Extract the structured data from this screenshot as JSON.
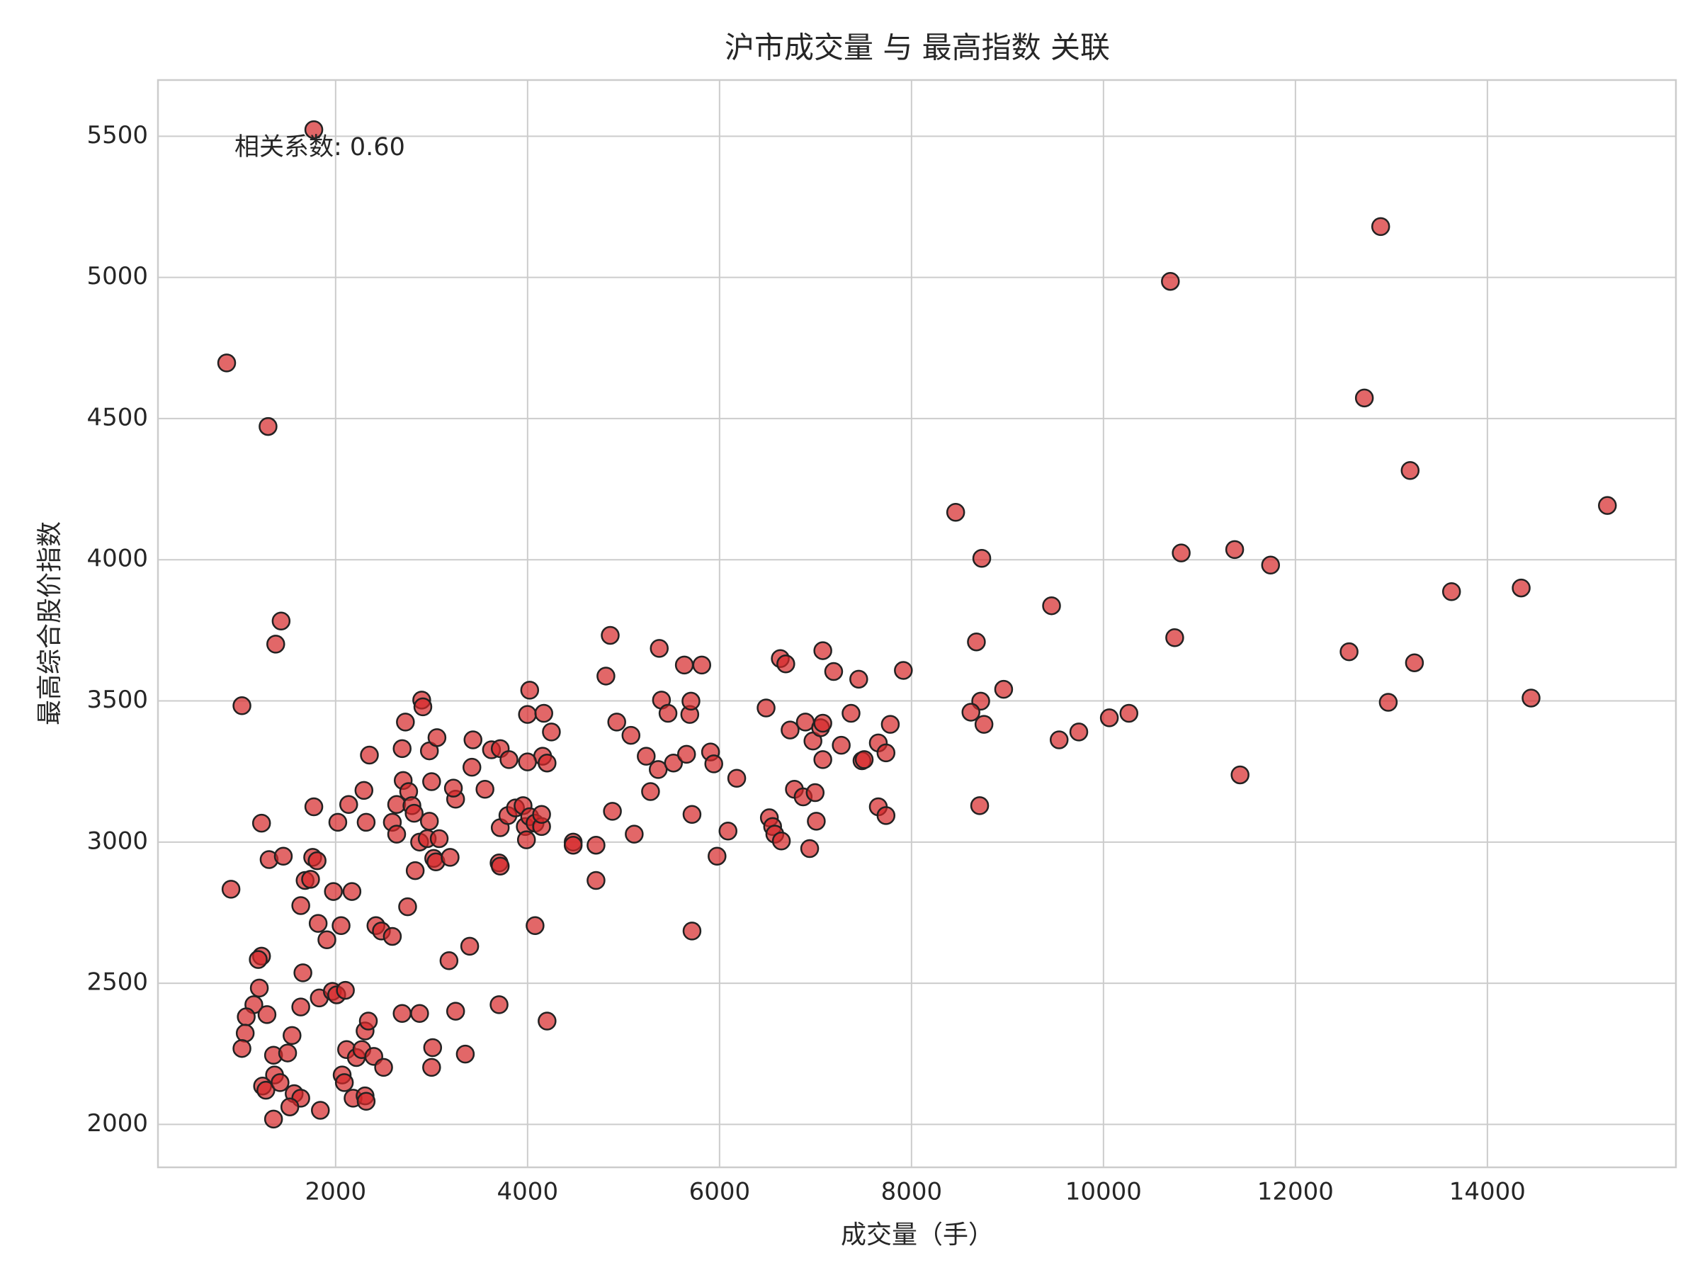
{
  "chart_data": {
    "type": "scatter",
    "title": "沪市成交量 与 最高指数 关联",
    "x_label": "成交量（手）",
    "y_label": "最高综合股价指数",
    "annotation": "相关系数: 0.60",
    "color": "#d62728",
    "grid": true,
    "xlim": [
      149,
      15964
    ],
    "ylim": [
      1848,
      5699
    ],
    "xticks": [
      2000,
      4000,
      6000,
      8000,
      10000,
      12000,
      14000
    ],
    "yticks": [
      2000,
      2500,
      3000,
      3500,
      4000,
      4500,
      5000,
      5500
    ],
    "x": [
      1773,
      865,
      1296,
      10697,
      12888,
      12718,
      13195,
      15250,
      8460,
      8732,
      10810,
      11367,
      11741,
      9459,
      14352,
      13626,
      10742,
      12559,
      13240,
      14455,
      12967,
      11423,
      8676,
      8721,
      8619,
      8755,
      8960,
      8710,
      7915,
      9538,
      9743,
      10061,
      10265,
      1432,
      1376,
      1024,
      910,
      1228,
      1307,
      1455,
      1773,
      1761,
      1807,
      1818,
      1682,
      1739,
      1637,
      1909,
      1977,
      2170,
      2057,
      1659,
      1228,
      1194,
      1205,
      1148,
      1069,
      1058,
      1024,
      1285,
      1637,
      1830,
      1966,
      2011,
      2102,
      1546,
      1353,
      1500,
      1364,
      1239,
      1273,
      1421,
      1568,
      1637,
      1523,
      1353,
      1841,
      2114,
      2068,
      2091,
      2216,
      2182,
      2307,
      2318,
      2273,
      2307,
      2341,
      2398,
      2500,
      2693,
      2875,
      3011,
      3000,
      3250,
      3351,
      3181,
      3397,
      3703,
      4203,
      2420,
      2477,
      2591,
      2750,
      2829,
      2023,
      2136,
      2295,
      2318,
      2591,
      2636,
      2636,
      2704,
      2761,
      2795,
      2818,
      2875,
      2954,
      2977,
      3022,
      3045,
      3079,
      3193,
      3250,
      3227,
      3000,
      2977,
      3056,
      2897,
      2909,
      2727,
      2693,
      2352,
      3431,
      3420,
      3556,
      3624,
      3715,
      3806,
      3715,
      3703,
      3715,
      3795,
      3874,
      3953,
      3976,
      3988,
      4022,
      4078,
      4146,
      4146,
      4157,
      4203,
      3999,
      3999,
      4022,
      4169,
      4248,
      4078,
      4475,
      4475,
      4713,
      4713,
      4816,
      4861,
      4884,
      4929,
      5077,
      5111,
      5236,
      5281,
      5361,
      5372,
      5395,
      5463,
      5520,
      5633,
      5656,
      5690,
      5702,
      5713,
      5713,
      5815,
      5906,
      5940,
      5974,
      6088,
      6179,
      6485,
      6519,
      6553,
      6576,
      6644,
      6633,
      6690,
      6735,
      6780,
      6871,
      6894,
      6939,
      6973,
      6996,
      7008,
      7053,
      7076,
      7076,
      7076,
      7189,
      7268,
      7370,
      7450,
      7484,
      7507,
      7654,
      7654,
      7734,
      7734,
      7779
    ],
    "values": [
      5523,
      4697,
      4472,
      4986,
      5180,
      4573,
      4316,
      4192,
      4168,
      4005,
      4024,
      4036,
      3981,
      3837,
      3900,
      3887,
      3724,
      3674,
      3635,
      3510,
      3495,
      3238,
      3709,
      3499,
      3460,
      3417,
      3541,
      3129,
      3608,
      3362,
      3390,
      3440,
      3456,
      3783,
      3701,
      3483,
      2833,
      3067,
      2938,
      2950,
      3125,
      2946,
      2934,
      2712,
      2864,
      2868,
      2775,
      2654,
      2825,
      2825,
      2704,
      2537,
      2596,
      2584,
      2483,
      2424,
      2381,
      2323,
      2269,
      2389,
      2416,
      2448,
      2471,
      2459,
      2475,
      2315,
      2245,
      2253,
      2175,
      2136,
      2121,
      2148,
      2109,
      2093,
      2062,
      2019,
      2050,
      2265,
      2175,
      2148,
      2237,
      2093,
      2101,
      2082,
      2265,
      2331,
      2366,
      2241,
      2202,
      2393,
      2393,
      2272,
      2202,
      2401,
      2249,
      2580,
      2631,
      2424,
      2366,
      2704,
      2685,
      2666,
      2771,
      2899,
      3070,
      3133,
      3183,
      3070,
      3070,
      3028,
      3133,
      3218,
      3179,
      3129,
      3102,
      3000,
      3012,
      3074,
      2942,
      2930,
      3012,
      2946,
      3152,
      3191,
      3214,
      3323,
      3370,
      3503,
      3479,
      3425,
      3331,
      3308,
      3362,
      3265,
      3187,
      3327,
      3331,
      3292,
      3051,
      2926,
      2915,
      3094,
      3121,
      3129,
      3055,
      3008,
      3090,
      3067,
      3055,
      3098,
      3304,
      3280,
      3284,
      3452,
      3538,
      3456,
      3390,
      2704,
      3000,
      2989,
      2989,
      2864,
      3588,
      3732,
      3109,
      3425,
      3378,
      3028,
      3304,
      3179,
      3257,
      3686,
      3503,
      3456,
      3280,
      3627,
      3311,
      3452,
      3499,
      3098,
      2685,
      3627,
      3319,
      3277,
      2950,
      3039,
      3226,
      3475,
      3086,
      3055,
      3028,
      3004,
      3650,
      3631,
      3397,
      3187,
      3160,
      3425,
      2977,
      3358,
      3175,
      3074,
      3405,
      3292,
      3678,
      3421,
      3604,
      3343,
      3456,
      3577,
      3288,
      3292,
      3125,
      3351,
      3094,
      3316,
      3417
    ]
  }
}
